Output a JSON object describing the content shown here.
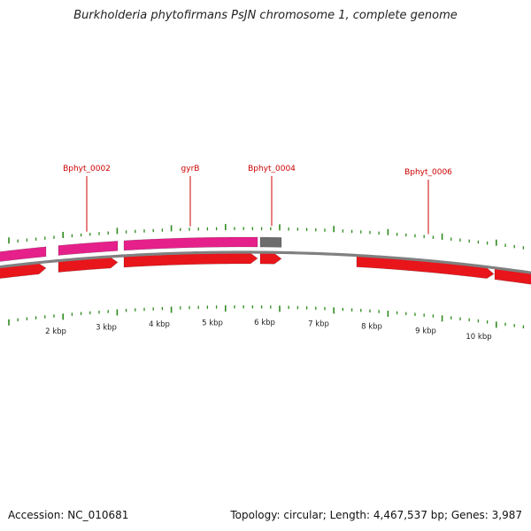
{
  "title": "Burkholderia phytofirmans PsJN chromosome 1, complete genome",
  "footer": {
    "accession": "Accession: NC_010681",
    "summary": "Topology: circular; Length: 4,467,537 bp; Genes: 3,987"
  },
  "colors": {
    "cds": "#e8151b",
    "cds_dark": "#b00a0e",
    "gene_pink": "#e6208a",
    "gene_gray": "#6d6d6d",
    "label_red": "#cc0000",
    "tick_green": "#2e8b1e",
    "backbone": "#808080"
  },
  "scale_labels": [
    "2 kbp",
    "3 kbp",
    "4 kbp",
    "5 kbp",
    "6 kbp",
    "7 kbp",
    "8 kbp",
    "9 kbp",
    "10 kbp"
  ],
  "gene_labels": [
    "Bphyt_0002",
    "gyrB",
    "Bphyt_0004",
    "Bphyt_0006"
  ]
}
